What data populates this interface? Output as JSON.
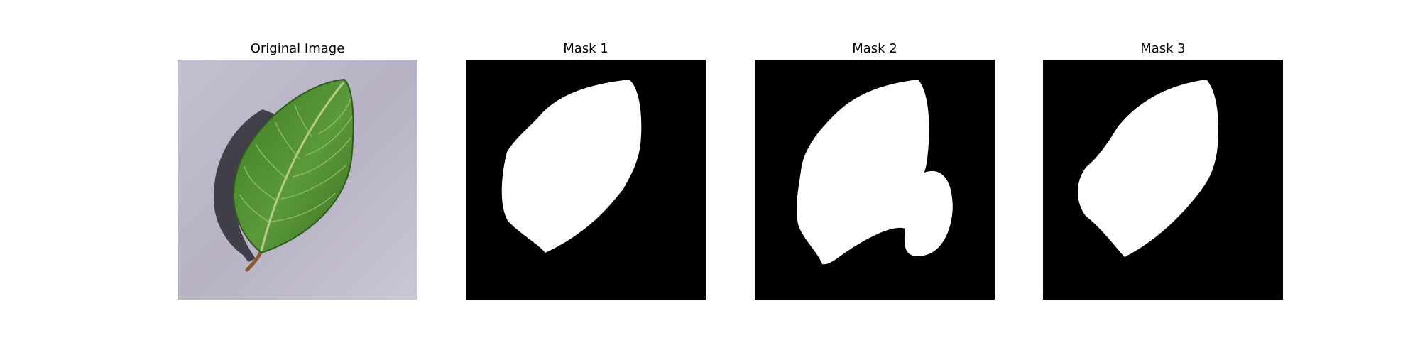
{
  "panels": [
    {
      "title": "Original Image",
      "kind": "photo"
    },
    {
      "title": "Mask 1",
      "kind": "mask"
    },
    {
      "title": "Mask 2",
      "kind": "mask"
    },
    {
      "title": "Mask 3",
      "kind": "mask"
    }
  ],
  "colors": {
    "background": "#ffffff",
    "mask_background": "#000000",
    "mask_foreground": "#ffffff",
    "leaf": "#4e8a2e",
    "surface": "#bcb7c8"
  }
}
